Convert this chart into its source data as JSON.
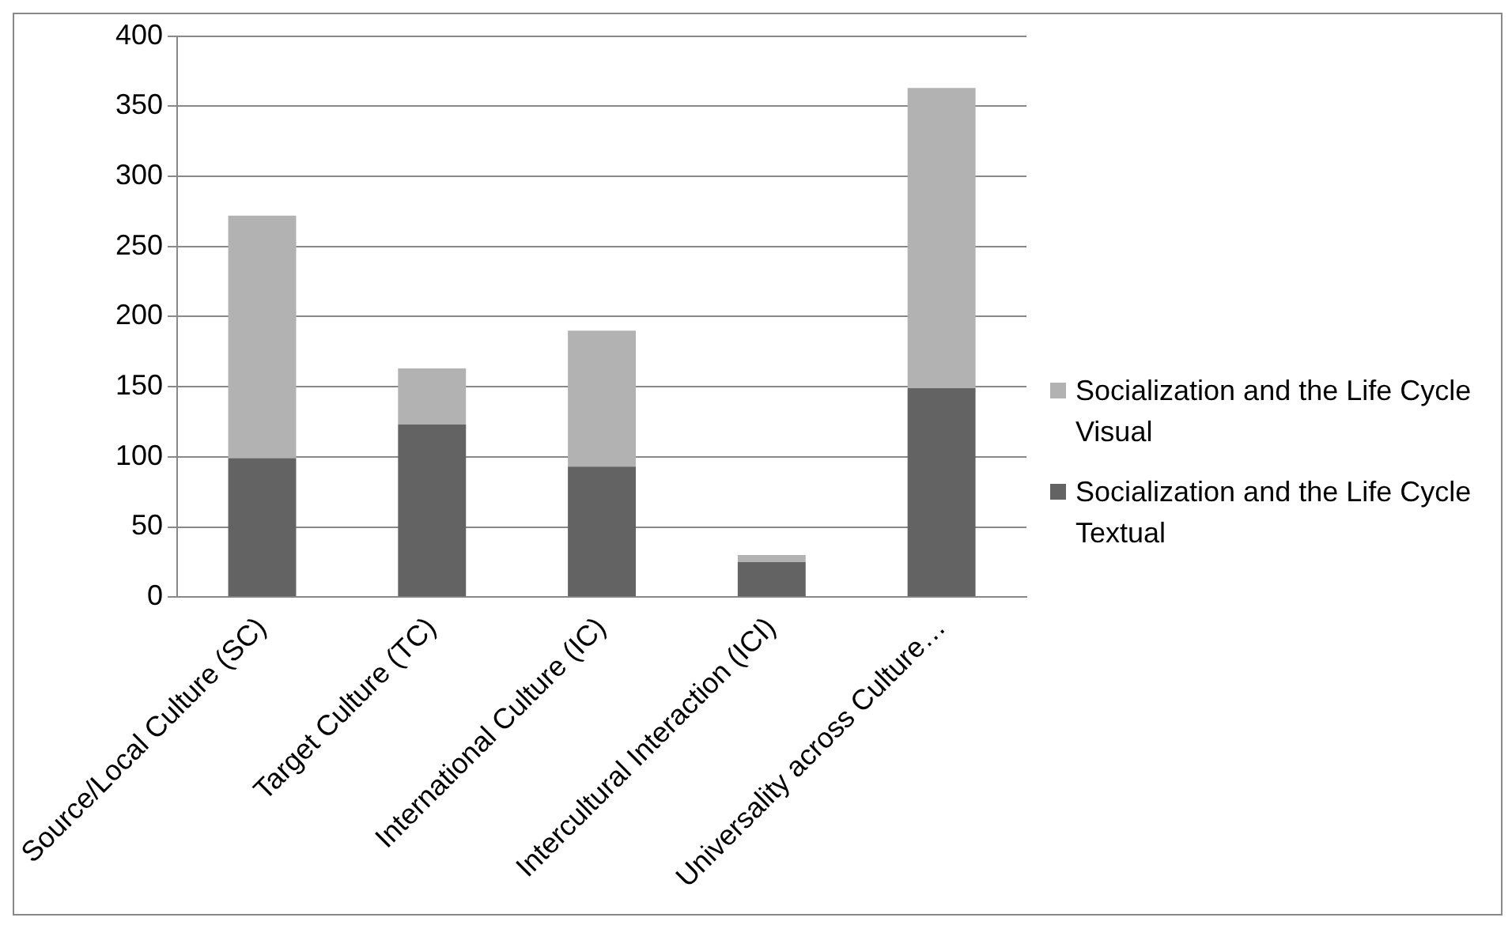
{
  "chart_data": {
    "type": "bar",
    "stacked": true,
    "categories": [
      "Source/Local Culture (SC)",
      "Target Culture (TC)",
      "International Culture (IC)",
      "Intercultural Interaction (ICI)",
      "Universality across Culture…"
    ],
    "series": [
      {
        "name": "Socialization and the Life Cycle  Textual",
        "color": "#636363",
        "values": [
          99,
          123,
          93,
          25,
          149
        ]
      },
      {
        "name": "Socialization and the Life Cycle  Visual",
        "color": "#b2b2b2",
        "values": [
          173,
          40,
          97,
          5,
          214
        ]
      }
    ],
    "ylim": [
      0,
      400
    ],
    "yticks": [
      0,
      50,
      100,
      150,
      200,
      250,
      300,
      350,
      400
    ],
    "grid": "y",
    "legend": "right"
  }
}
